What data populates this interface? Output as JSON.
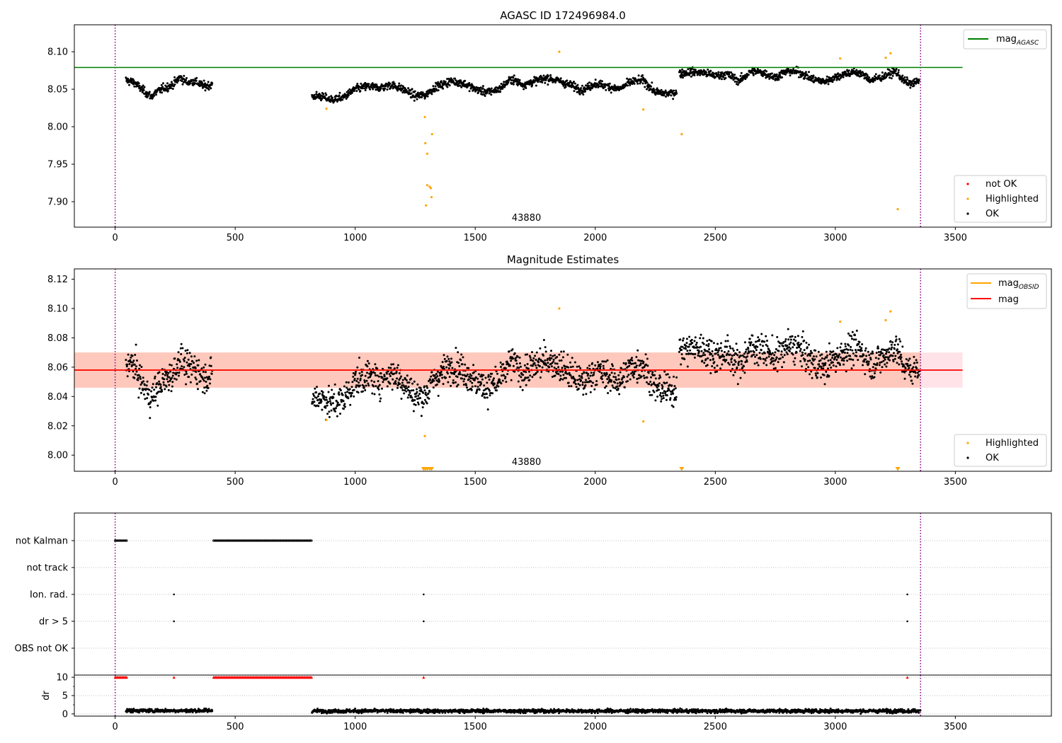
{
  "chart_data": [
    {
      "type": "scatter",
      "title": "AGASC ID 172496984.0",
      "xlim": [
        -170,
        3900
      ],
      "ylim": [
        7.866,
        8.136
      ],
      "xticks": [
        0,
        500,
        1000,
        1500,
        2000,
        2500,
        3000,
        3500
      ],
      "yticks": [
        7.9,
        7.95,
        8.0,
        8.05,
        8.1
      ],
      "ytick_labels": [
        "7.90",
        "7.95",
        "8.00",
        "8.05",
        "8.10"
      ],
      "xtick_labels": [
        "0",
        "500",
        "1000",
        "1500",
        "2000",
        "2500",
        "3000",
        "3500"
      ],
      "reference_lines": [
        {
          "name": "mag",
          "subscript": "AGASC",
          "y": 8.079,
          "x_range": [
            -170,
            3530
          ],
          "color": "#008000"
        }
      ],
      "vlines": [
        {
          "x": 0,
          "color": "#800080",
          "style": "dotted"
        },
        {
          "x": 3355,
          "color": "#800080",
          "style": "dotted"
        }
      ],
      "annotation": {
        "text": "43880",
        "x": 1675
      },
      "legend_upper": [
        {
          "label": "mag",
          "subscript": "AGASC",
          "color": "#008000",
          "kind": "line"
        }
      ],
      "legend_lower": [
        {
          "label": "not OK",
          "color": "#ff0000",
          "kind": "dot"
        },
        {
          "label": "Highlighted",
          "color": "#ffa500",
          "kind": "dot"
        },
        {
          "label": "OK",
          "color": "#000000",
          "kind": "dot"
        }
      ],
      "series": [
        {
          "name": "OK",
          "color": "#000000",
          "segments": [
            {
              "x": [
                45,
                80,
                110,
                150,
                170,
                200,
                240,
                270,
                300,
                330,
                370,
                405
              ],
              "y": [
                8.062,
                8.059,
                8.05,
                8.04,
                8.046,
                8.051,
                8.056,
                8.066,
                8.059,
                8.061,
                8.054,
                8.056
              ]
            },
            {
              "x": [
                820,
                850,
                900,
                950,
                1000,
                1050,
                1100,
                1150,
                1200,
                1250,
                1290,
                1330,
                1400,
                1450,
                1500,
                1550,
                1600,
                1650,
                1700,
                1750,
                1800,
                1850,
                1900,
                1950,
                2000,
                2050,
                2100,
                2150,
                2200,
                2250,
                2300,
                2340
              ],
              "y": [
                8.04,
                8.041,
                8.036,
                8.039,
                8.05,
                8.054,
                8.052,
                8.056,
                8.05,
                8.041,
                8.042,
                8.052,
                8.061,
                8.058,
                8.05,
                8.046,
                8.05,
                8.064,
                8.056,
                8.061,
                8.065,
                8.061,
                8.055,
                8.049,
                8.058,
                8.054,
                8.05,
                8.06,
                8.062,
                8.046,
                8.044,
                8.046
              ]
            },
            {
              "x": [
                2350,
                2400,
                2450,
                2500,
                2550,
                2600,
                2650,
                2700,
                2750,
                2800,
                2850,
                2900,
                2950,
                3000,
                3050,
                3100,
                3150,
                3200,
                3250,
                3290,
                3320,
                3350
              ],
              "y": [
                8.071,
                8.073,
                8.072,
                8.068,
                8.07,
                8.061,
                8.074,
                8.072,
                8.066,
                8.074,
                8.073,
                8.064,
                8.06,
                8.066,
                8.072,
                8.072,
                8.062,
                8.067,
                8.074,
                8.06,
                8.057,
                8.061
              ]
            }
          ]
        },
        {
          "name": "Highlighted",
          "color": "#ffa500",
          "points": [
            [
              880,
              8.024
            ],
            [
              1290,
              8.013
            ],
            [
              1292,
              7.978
            ],
            [
              1300,
              7.964
            ],
            [
              1295,
              7.895
            ],
            [
              1300,
              7.922
            ],
            [
              1310,
              7.92
            ],
            [
              1315,
              7.918
            ],
            [
              1318,
              7.906
            ],
            [
              1320,
              7.99
            ],
            [
              1850,
              8.1
            ],
            [
              2200,
              8.023
            ],
            [
              2360,
              7.99
            ],
            [
              3020,
              8.091
            ],
            [
              3210,
              8.092
            ],
            [
              3230,
              8.098
            ],
            [
              3260,
              7.89
            ]
          ]
        },
        {
          "name": "not OK",
          "color": "#ff0000",
          "points": []
        }
      ]
    },
    {
      "type": "scatter",
      "title": "Magnitude Estimates",
      "xlim": [
        -170,
        3900
      ],
      "ylim": [
        7.989,
        8.127
      ],
      "xticks": [
        0,
        500,
        1000,
        1500,
        2000,
        2500,
        3000,
        3500
      ],
      "xtick_labels": [
        "0",
        "500",
        "1000",
        "1500",
        "2000",
        "2500",
        "3000",
        "3500"
      ],
      "yticks": [
        8.0,
        8.02,
        8.04,
        8.06,
        8.08,
        8.1,
        8.12
      ],
      "ytick_labels": [
        "8.00",
        "8.02",
        "8.04",
        "8.06",
        "8.08",
        "8.10",
        "8.12"
      ],
      "mag_line": {
        "name": "mag",
        "y": 8.058,
        "color": "#ff0000"
      },
      "bands": [
        {
          "y_range": [
            8.046,
            8.07
          ],
          "x_range": [
            -170,
            3530
          ],
          "color": "#ffc0cb",
          "opacity": 0.45
        },
        {
          "y_range": [
            8.046,
            8.07
          ],
          "x_range": [
            -170,
            3355
          ],
          "color": "#ffa07a",
          "opacity": 0.4
        }
      ],
      "obsid_lines": [
        {
          "x_range": [
            -170,
            3355
          ],
          "y": 8.058,
          "color": "#ffa500"
        }
      ],
      "vlines": [
        {
          "x": 0,
          "color": "#800080",
          "style": "dotted"
        },
        {
          "x": 3355,
          "color": "#800080",
          "style": "dotted"
        }
      ],
      "annotation": {
        "text": "43880",
        "x": 1675
      },
      "legend_upper": [
        {
          "label": "mag",
          "subscript": "OBSID",
          "color": "#ffa500",
          "kind": "line"
        },
        {
          "label": "mag",
          "color": "#ff0000",
          "kind": "line"
        }
      ],
      "legend_lower": [
        {
          "label": "Highlighted",
          "color": "#ffa500",
          "kind": "dot"
        },
        {
          "label": "OK",
          "color": "#000000",
          "kind": "dot"
        }
      ],
      "series": [
        {
          "name": "OK",
          "color": "#000000",
          "segments": [
            {
              "x": [
                45,
                80,
                110,
                150,
                170,
                200,
                240,
                270,
                300,
                330,
                370,
                405
              ],
              "y": [
                8.063,
                8.061,
                8.049,
                8.038,
                8.045,
                8.05,
                8.055,
                8.066,
                8.058,
                8.06,
                8.053,
                8.055
              ]
            },
            {
              "x": [
                820,
                850,
                900,
                950,
                1000,
                1050,
                1100,
                1150,
                1200,
                1250,
                1290,
                1330,
                1400,
                1450,
                1500,
                1550,
                1600,
                1650,
                1700,
                1750,
                1800,
                1850,
                1900,
                1950,
                2000,
                2050,
                2100,
                2150,
                2200,
                2250,
                2300,
                2340
              ],
              "y": [
                8.038,
                8.04,
                8.035,
                8.038,
                8.05,
                8.054,
                8.051,
                8.056,
                8.05,
                8.04,
                8.041,
                8.052,
                8.061,
                8.058,
                8.05,
                8.046,
                8.05,
                8.064,
                8.056,
                8.061,
                8.065,
                8.061,
                8.055,
                8.049,
                8.058,
                8.054,
                8.05,
                8.06,
                8.062,
                8.046,
                8.044,
                8.046
              ]
            },
            {
              "x": [
                2350,
                2400,
                2450,
                2500,
                2550,
                2600,
                2650,
                2700,
                2750,
                2800,
                2850,
                2900,
                2950,
                3000,
                3050,
                3100,
                3150,
                3200,
                3250,
                3290,
                3320,
                3350
              ],
              "y": [
                8.071,
                8.073,
                8.072,
                8.068,
                8.07,
                8.061,
                8.074,
                8.072,
                8.066,
                8.074,
                8.073,
                8.064,
                8.06,
                8.066,
                8.072,
                8.072,
                8.062,
                8.067,
                8.074,
                8.06,
                8.057,
                8.061
              ]
            }
          ]
        },
        {
          "name": "Highlighted",
          "color": "#ffa500",
          "points": [
            [
              880,
              8.024
            ],
            [
              1290,
              8.013
            ],
            [
              1850,
              8.1
            ],
            [
              2200,
              8.023
            ],
            [
              3020,
              8.091
            ],
            [
              3210,
              8.092
            ],
            [
              3230,
              8.098
            ]
          ]
        },
        {
          "name": "Highlighted (out of range)",
          "color": "#ffa500",
          "marker": "triangle-down",
          "points": [
            [
              1285,
              7.99
            ],
            [
              1292,
              7.99
            ],
            [
              1300,
              7.99
            ],
            [
              1310,
              7.99
            ],
            [
              1318,
              7.99
            ],
            [
              2360,
              7.99
            ],
            [
              3260,
              7.99
            ]
          ]
        }
      ]
    },
    {
      "type": "scatter",
      "xlim": [
        -170,
        3900
      ],
      "categories": [
        "not Kalman",
        "not track",
        "Ion. rad.",
        "dr > 5",
        "OBS not OK"
      ],
      "flags": {
        "not Kalman": [
          [
            0,
            50
          ],
          [
            410,
            820
          ]
        ],
        "not track": [],
        "Ion. rad.": [
          [
            245,
            245
          ],
          [
            1285,
            1285
          ],
          [
            3300,
            3300
          ]
        ],
        "dr > 5": [
          [
            245,
            245
          ],
          [
            1285,
            1285
          ],
          [
            3300,
            3300
          ]
        ],
        "OBS not OK": []
      },
      "vlines": [
        {
          "x": 0,
          "color": "#800080",
          "style": "dotted"
        },
        {
          "x": 3355,
          "color": "#800080",
          "style": "dotted"
        }
      ]
    },
    {
      "type": "scatter",
      "ylabel": "dr",
      "xlim": [
        -170,
        3900
      ],
      "ylim": [
        -0.6,
        10.6
      ],
      "yticks": [
        0,
        5,
        10
      ],
      "ytick_labels": [
        "0",
        "5",
        "10"
      ],
      "xticks": [
        0,
        500,
        1000,
        1500,
        2000,
        2500,
        3000,
        3500
      ],
      "xtick_labels": [
        "0",
        "500",
        "1000",
        "1500",
        "2000",
        "2500",
        "3000",
        "3500"
      ],
      "clipped_at_10": [
        [
          0,
          50
        ],
        [
          245,
          245
        ],
        [
          410,
          820
        ],
        [
          1285,
          1285
        ],
        [
          3300,
          3300
        ]
      ],
      "dr_segments": [
        {
          "x_range": [
            45,
            405
          ],
          "level": 0.9
        },
        {
          "x_range": [
            820,
            3355
          ],
          "level": 0.8
        }
      ],
      "vlines": [
        {
          "x": 0,
          "color": "#800080",
          "style": "dotted"
        },
        {
          "x": 3355,
          "color": "#800080",
          "style": "dotted"
        }
      ]
    }
  ]
}
